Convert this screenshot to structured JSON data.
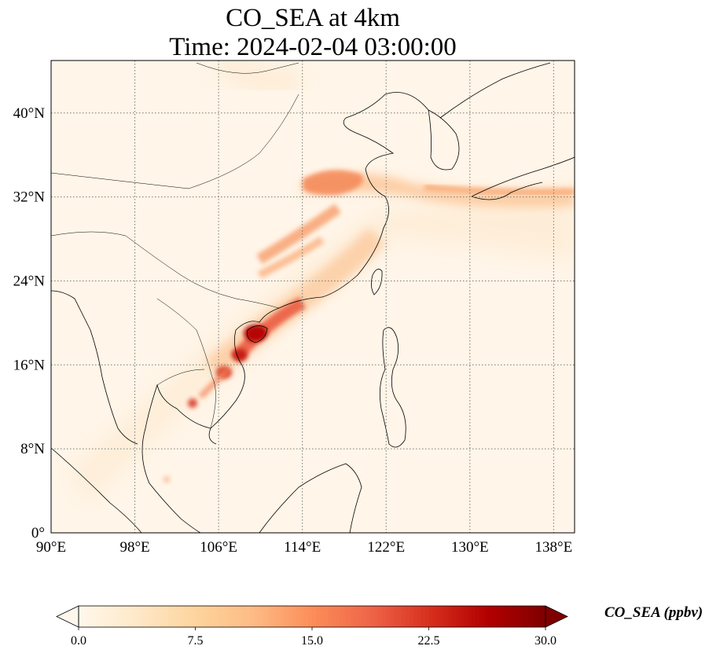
{
  "title": {
    "line1": "CO_SEA at 4km",
    "line2": "Time: 2024-02-04 03:00:00"
  },
  "map": {
    "lon_range": [
      90,
      140
    ],
    "lat_range": [
      0,
      45
    ],
    "lon_ticks": [
      {
        "value": 90,
        "label": "90°E"
      },
      {
        "value": 98,
        "label": "98°E"
      },
      {
        "value": 106,
        "label": "106°E"
      },
      {
        "value": 114,
        "label": "114°E"
      },
      {
        "value": 122,
        "label": "122°E"
      },
      {
        "value": 130,
        "label": "130°E"
      },
      {
        "value": 138,
        "label": "138°E"
      }
    ],
    "lat_ticks": [
      {
        "value": 0,
        "label": "0°"
      },
      {
        "value": 8,
        "label": "8°N"
      },
      {
        "value": 16,
        "label": "16°N"
      },
      {
        "value": 24,
        "label": "24°N"
      },
      {
        "value": 32,
        "label": "32°N"
      },
      {
        "value": 40,
        "label": "40°N"
      }
    ],
    "gridlines": true,
    "background_color": "#fff5e8"
  },
  "colorbar": {
    "label": "CO_SEA (ppbv)",
    "min": 0.0,
    "max": 30.0,
    "extend": "both",
    "ticks": [
      {
        "value": 0.0,
        "label": "0.0"
      },
      {
        "value": 7.5,
        "label": "7.5"
      },
      {
        "value": 15.0,
        "label": "15.0"
      },
      {
        "value": 22.5,
        "label": "22.5"
      },
      {
        "value": 30.0,
        "label": "30.0"
      }
    ],
    "colors": [
      "#fff7ec",
      "#fee8c8",
      "#fdd49e",
      "#fdbb84",
      "#fc8d59",
      "#ef6548",
      "#d7301f",
      "#b30000",
      "#7f0000"
    ]
  }
}
